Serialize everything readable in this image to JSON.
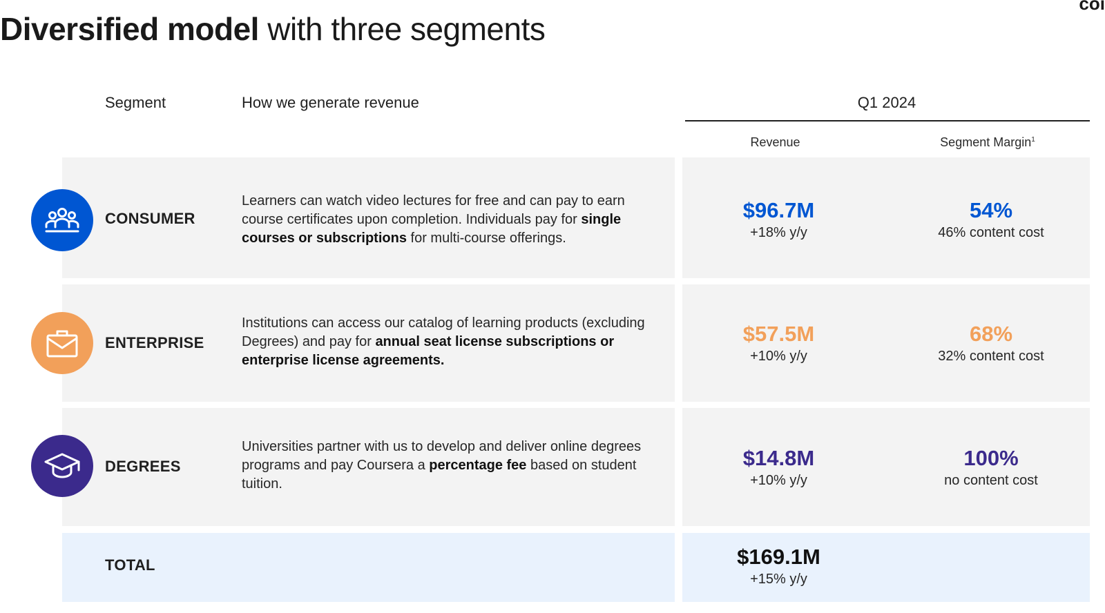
{
  "title": {
    "bold": "Diversified model",
    "rest": " with three segments"
  },
  "corner_logo": "coi",
  "headers": {
    "segment": "Segment",
    "how": "How we generate revenue",
    "period": "Q1 2024",
    "revenue": "Revenue",
    "margin": "Segment Margin",
    "margin_footnote": "1"
  },
  "colors": {
    "consumer": "#0056d2",
    "enterprise": "#f2a05a",
    "degrees": "#3b2a8c",
    "total_bg": "#e9f2fd",
    "row_bg": "#f3f3f3"
  },
  "segments": [
    {
      "name": "CONSUMER",
      "icon": "people-group-icon",
      "desc_pre": "Learners can watch video lectures for free and can pay to earn course certificates upon completion. Individuals pay for ",
      "desc_bold": "single courses or subscriptions",
      "desc_post": " for multi-course offerings.",
      "revenue": "$96.7M",
      "revenue_growth": "+18% y/y",
      "margin": "54%",
      "margin_note": "46% content cost"
    },
    {
      "name": "ENTERPRISE",
      "icon": "briefcase-icon",
      "desc_pre": "Institutions can access our catalog of learning products (excluding Degrees) and pay for ",
      "desc_bold": "annual seat license subscriptions or enterprise license agreements.",
      "desc_post": "",
      "revenue": "$57.5M",
      "revenue_growth": "+10% y/y",
      "margin": "68%",
      "margin_note": "32% content cost"
    },
    {
      "name": "DEGREES",
      "icon": "graduation-cap-icon",
      "desc_pre": "Universities partner with us to develop and deliver online degrees programs and pay Coursera a ",
      "desc_bold": "percentage fee",
      "desc_post": " based on student tuition.",
      "revenue": "$14.8M",
      "revenue_growth": "+10% y/y",
      "margin": "100%",
      "margin_note": "no content cost"
    }
  ],
  "total": {
    "label": "TOTAL",
    "revenue": "$169.1M",
    "revenue_growth": "+15% y/y"
  }
}
